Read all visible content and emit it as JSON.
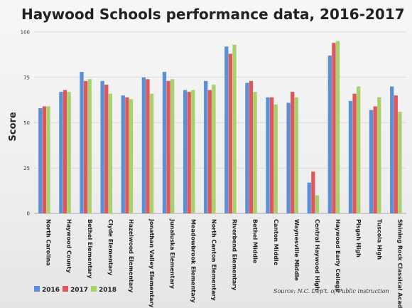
{
  "chart_data": {
    "type": "bar",
    "title": "Haywood Schools performance data, 2016-2017",
    "xlabel": "",
    "ylabel": "Score",
    "ylim": [
      0,
      100
    ],
    "yticks": [
      0,
      25,
      50,
      75,
      100
    ],
    "grid": true,
    "legend_position": "bottom-left",
    "source": "Source: N.C. Dep't. of Public instruction",
    "categories": [
      "North Carolina",
      "Haywood County",
      "Bethel Elementary",
      "Clyde Elementary",
      "Hazelwood Elementary",
      "Jonathan Valley Elementary",
      "Junaluska Elementary",
      "Meadowbrook Elementary",
      "North Canton Elementary",
      "Riverbend Elementary",
      "Bethel Middle",
      "Canton Middle",
      "Waynesville Middle",
      "Central Haywood High",
      "Haywood Early College",
      "Pisgah High",
      "Tuscola High",
      "Shining Rock Classical Academy"
    ],
    "series": [
      {
        "name": "2016",
        "color": "#5b8fd6",
        "values": [
          58,
          67,
          78,
          73,
          65,
          75,
          78,
          68,
          73,
          92,
          72,
          64,
          61,
          17,
          87,
          62,
          57,
          70
        ]
      },
      {
        "name": "2017",
        "color": "#e0575b",
        "values": [
          59,
          68,
          73,
          71,
          64,
          74,
          73,
          67,
          68,
          88,
          73,
          64,
          67,
          23,
          94,
          66,
          59,
          65
        ]
      },
      {
        "name": "2018",
        "color": "#a8d06b",
        "values": [
          59,
          67,
          74,
          66,
          63,
          66,
          74,
          68,
          71,
          93,
          67,
          60,
          64,
          10,
          95,
          70,
          64,
          56
        ]
      }
    ]
  }
}
